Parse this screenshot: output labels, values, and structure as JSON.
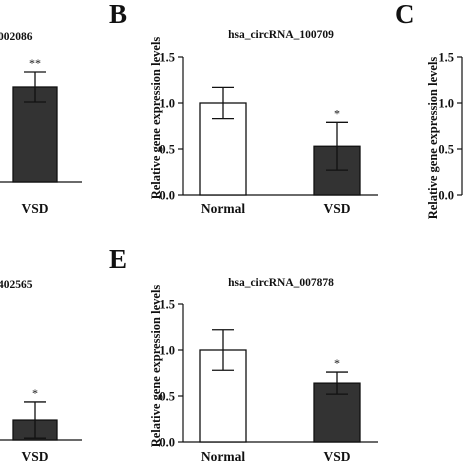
{
  "chart_data": [
    {
      "panel": "",
      "type": "bar",
      "title": "002086",
      "ylabel": "",
      "categories": [
        "VSD"
      ],
      "values": [
        1.14
      ],
      "errors": [
        0.18
      ],
      "significance": [
        "**"
      ],
      "bar_colors": [
        "#333333"
      ],
      "ylim": [
        0,
        1.5
      ],
      "yticks": []
    },
    {
      "panel": "B",
      "type": "bar",
      "title": "hsa_circRNA_100709",
      "ylabel": "Relative gene expression levels",
      "categories": [
        "Normal",
        "VSD"
      ],
      "values": [
        1.0,
        0.53
      ],
      "errors": [
        0.17,
        0.26
      ],
      "significance": [
        "",
        "*"
      ],
      "bar_colors": [
        "#ffffff",
        "#333333"
      ],
      "ylim": [
        0,
        1.5
      ],
      "yticks": [
        "0.0",
        "0.5",
        "1.0",
        "1.5"
      ]
    },
    {
      "panel": "C",
      "type": "bar",
      "title": "",
      "ylabel": "Relative gene expression levels",
      "categories": [],
      "values": [],
      "errors": [],
      "significance": [],
      "bar_colors": [],
      "ylim": [
        0,
        1.5
      ],
      "yticks": [
        "0.0",
        "0.5",
        "1.0",
        "1.5"
      ]
    },
    {
      "panel": "",
      "type": "bar",
      "title": "402565",
      "ylabel": "",
      "categories": [
        "VSD"
      ],
      "values": [
        0.22
      ],
      "errors": [
        0.2
      ],
      "significance": [
        "*"
      ],
      "bar_colors": [
        "#333333"
      ],
      "ylim": [
        0,
        1.5
      ],
      "yticks": []
    },
    {
      "panel": "E",
      "type": "bar",
      "title": "hsa_circRNA_007878",
      "ylabel": "Relative gene expression levels",
      "categories": [
        "Normal",
        "VSD"
      ],
      "values": [
        1.0,
        0.64
      ],
      "errors": [
        0.22,
        0.12
      ],
      "significance": [
        "",
        "*"
      ],
      "bar_colors": [
        "#ffffff",
        "#333333"
      ],
      "ylim": [
        0,
        1.5
      ],
      "yticks": [
        "0.0",
        "0.5",
        "1.0",
        "1.5"
      ]
    }
  ]
}
